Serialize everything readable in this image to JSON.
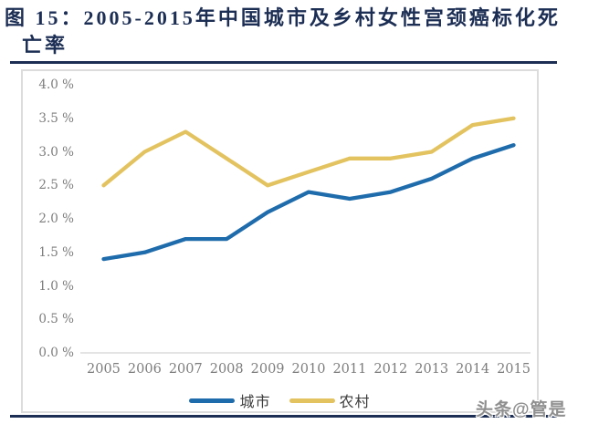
{
  "title": {
    "line1": "图 15：2005-2015年中国城市及乡村女性宫颈癌标化死",
    "line2": "亡率"
  },
  "watermark": "头条@管是",
  "colors": {
    "accent_navy": "#1c2e54",
    "urban_blue": "#1f6cac",
    "rural_gold": "#e3c35f",
    "tick_gray": "#7d7d7d",
    "frame_gray": "#dcdcdc"
  },
  "chart_data": {
    "type": "line",
    "title": "2005-2015年中国城市及乡村女性宫颈癌标化死亡率",
    "xlabel": "",
    "ylabel": "",
    "categories": [
      "2005",
      "2006",
      "2007",
      "2008",
      "2009",
      "2010",
      "2011",
      "2012",
      "2013",
      "2014",
      "2015"
    ],
    "series": [
      {
        "name": "城市",
        "color": "#1f6cac",
        "values": [
          1.4,
          1.5,
          1.7,
          1.7,
          2.1,
          2.4,
          2.3,
          2.4,
          2.6,
          2.9,
          3.1
        ]
      },
      {
        "name": "农村",
        "color": "#e3c35f",
        "values": [
          2.5,
          3.0,
          3.3,
          2.9,
          2.5,
          2.7,
          2.9,
          2.9,
          3.0,
          3.4,
          3.5
        ]
      }
    ],
    "y_ticks": [
      "4.0 %",
      "3.5 %",
      "3.0 %",
      "2.5 %",
      "2.0 %",
      "1.5 %",
      "1.0 %",
      "0.5 %",
      "0.0 %"
    ],
    "ylim": [
      0.0,
      4.0
    ],
    "unit": "%",
    "grid": false,
    "legend_position": "bottom"
  }
}
